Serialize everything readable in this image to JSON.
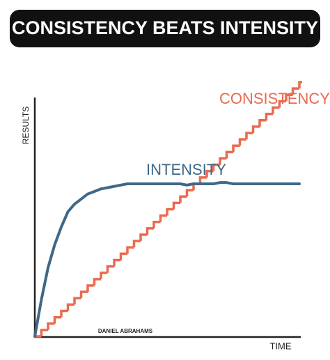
{
  "chart_data": {
    "type": "line",
    "title": "CONSISTENCY BEATS INTENSITY",
    "x_label": "TIME",
    "y_label": "RESULTS",
    "credit": "DANIEL ABRAHAMS",
    "xlim": [
      0,
      100
    ],
    "ylim": [
      0,
      100
    ],
    "x": [
      0,
      2.5,
      5,
      7.5,
      10,
      12.5,
      15,
      17.5,
      20,
      22.5,
      25,
      27.5,
      30,
      32.5,
      35,
      37.5,
      40,
      42.5,
      45,
      47.5,
      50,
      52.5,
      55,
      57.5,
      60,
      62.5,
      65,
      67.5,
      70,
      72.5,
      75,
      77.5,
      80,
      82.5,
      85,
      87.5,
      90,
      92.5,
      95,
      97.5,
      100
    ],
    "series": [
      {
        "name": "CONSISTENCY",
        "color": "#ea6a4f",
        "style": "step",
        "values": [
          0,
          2.5,
          5,
          7.5,
          10,
          12.5,
          15,
          17.5,
          20,
          22.5,
          25,
          27.5,
          30,
          32.5,
          35,
          37.5,
          40,
          42.5,
          45,
          47.5,
          50,
          52.5,
          55,
          57.5,
          60,
          62.5,
          65,
          67.5,
          70,
          72.5,
          75,
          77.5,
          80,
          82.5,
          85,
          87.5,
          90,
          92.5,
          95,
          97.5,
          100
        ]
      },
      {
        "name": "INTENSITY",
        "color": "#3f6888",
        "style": "curve",
        "values": [
          0,
          14.5,
          27,
          36,
          43,
          49,
          52,
          54,
          56,
          57,
          58,
          58.5,
          59,
          59.5,
          60,
          60,
          60,
          60,
          60,
          60,
          60,
          60,
          60,
          59.5,
          60,
          60,
          60,
          60,
          60.5,
          60.5,
          60,
          60,
          60,
          60,
          60,
          60,
          60,
          60,
          60,
          60,
          60
        ]
      }
    ]
  }
}
